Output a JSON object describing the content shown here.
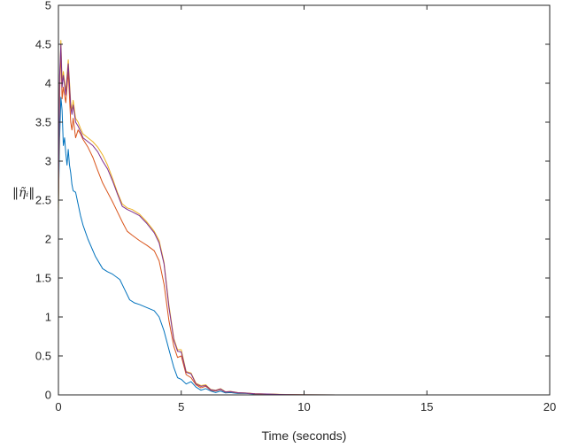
{
  "chart_data": {
    "type": "line",
    "title": "",
    "xlabel": "Time (seconds)",
    "ylabel": "‖η̃ᵢ‖",
    "xlim": [
      0,
      20
    ],
    "ylim": [
      0,
      5
    ],
    "xticks": [
      "0",
      "5",
      "10",
      "15",
      "20"
    ],
    "yticks": [
      "0",
      "0.5",
      "1",
      "1.5",
      "2",
      "2.5",
      "3",
      "3.5",
      "4",
      "4.5",
      "5"
    ],
    "grid": false,
    "legend": "none",
    "series": [
      {
        "color": "#0072BD",
        "x": [
          0,
          0.05,
          0.1,
          0.15,
          0.2,
          0.25,
          0.3,
          0.35,
          0.4,
          0.45,
          0.5,
          0.55,
          0.6,
          0.7,
          0.8,
          0.9,
          1.0,
          1.2,
          1.5,
          1.8,
          2.0,
          2.2,
          2.5,
          2.7,
          2.9,
          3.1,
          3.3,
          3.6,
          3.9,
          4.1,
          4.3,
          4.5,
          4.7,
          4.85,
          5.0,
          5.2,
          5.4,
          5.6,
          5.8,
          6.0,
          6.2,
          6.4,
          6.6,
          6.8,
          7.0,
          7.3,
          7.6,
          8.0,
          8.5,
          9.0,
          10,
          12,
          15,
          20
        ],
        "y": [
          2.45,
          3.3,
          3.82,
          3.65,
          3.2,
          3.3,
          3.1,
          2.95,
          3.15,
          2.95,
          2.85,
          2.7,
          2.62,
          2.6,
          2.45,
          2.3,
          2.18,
          2.0,
          1.78,
          1.62,
          1.58,
          1.55,
          1.48,
          1.35,
          1.22,
          1.18,
          1.16,
          1.12,
          1.08,
          1.0,
          0.82,
          0.58,
          0.35,
          0.22,
          0.2,
          0.14,
          0.17,
          0.1,
          0.06,
          0.08,
          0.05,
          0.03,
          0.05,
          0.025,
          0.03,
          0.018,
          0.02,
          0.01,
          0.008,
          0.004,
          0.002,
          0.0,
          0.0,
          0.0
        ]
      },
      {
        "color": "#D95319",
        "x": [
          0,
          0.05,
          0.1,
          0.15,
          0.2,
          0.3,
          0.4,
          0.5,
          0.55,
          0.6,
          0.7,
          0.8,
          0.9,
          1.0,
          1.2,
          1.4,
          1.6,
          1.8,
          2.0,
          2.2,
          2.4,
          2.6,
          2.8,
          3.0,
          3.3,
          3.6,
          3.9,
          4.1,
          4.3,
          4.5,
          4.7,
          4.85,
          5.0,
          5.2,
          5.4,
          5.6,
          5.8,
          6.0,
          6.2,
          6.4,
          6.6,
          6.8,
          7.0,
          7.3,
          7.6,
          8.0,
          8.5,
          9.0,
          10,
          12,
          15,
          20
        ],
        "y": [
          2.45,
          3.9,
          4.42,
          3.8,
          3.95,
          3.75,
          4.15,
          3.5,
          3.4,
          3.55,
          3.3,
          3.4,
          3.35,
          3.28,
          3.18,
          3.05,
          2.88,
          2.72,
          2.6,
          2.48,
          2.35,
          2.22,
          2.1,
          2.05,
          1.98,
          1.92,
          1.85,
          1.72,
          1.42,
          0.95,
          0.62,
          0.48,
          0.5,
          0.26,
          0.22,
          0.13,
          0.09,
          0.11,
          0.06,
          0.05,
          0.07,
          0.035,
          0.04,
          0.025,
          0.022,
          0.014,
          0.01,
          0.006,
          0.002,
          0.0,
          0.0,
          0.0
        ]
      },
      {
        "color": "#EDB120",
        "x": [
          0,
          0.05,
          0.1,
          0.15,
          0.2,
          0.3,
          0.4,
          0.5,
          0.55,
          0.6,
          0.7,
          0.8,
          0.9,
          1.0,
          1.2,
          1.4,
          1.6,
          1.8,
          2.0,
          2.2,
          2.4,
          2.6,
          2.8,
          3.0,
          3.3,
          3.6,
          3.9,
          4.1,
          4.3,
          4.5,
          4.7,
          4.85,
          5.0,
          5.2,
          5.4,
          5.6,
          5.8,
          6.0,
          6.2,
          6.4,
          6.6,
          6.8,
          7.0,
          7.3,
          7.6,
          8.0,
          8.5,
          9.0,
          10,
          12,
          15,
          20
        ],
        "y": [
          2.3,
          4.0,
          4.55,
          4.0,
          4.15,
          3.9,
          4.3,
          3.75,
          3.65,
          3.78,
          3.55,
          3.5,
          3.42,
          3.35,
          3.3,
          3.25,
          3.18,
          3.08,
          2.95,
          2.78,
          2.6,
          2.45,
          2.4,
          2.38,
          2.32,
          2.22,
          2.1,
          1.98,
          1.7,
          1.15,
          0.72,
          0.58,
          0.58,
          0.3,
          0.28,
          0.15,
          0.12,
          0.13,
          0.07,
          0.06,
          0.08,
          0.04,
          0.045,
          0.03,
          0.025,
          0.015,
          0.012,
          0.007,
          0.002,
          0.0,
          0.0,
          0.0
        ]
      },
      {
        "color": "#7E2F8E",
        "x": [
          0,
          0.05,
          0.1,
          0.15,
          0.2,
          0.3,
          0.4,
          0.5,
          0.55,
          0.6,
          0.7,
          0.8,
          0.9,
          1.0,
          1.2,
          1.4,
          1.6,
          1.8,
          2.0,
          2.2,
          2.4,
          2.6,
          2.8,
          3.0,
          3.3,
          3.6,
          3.9,
          4.1,
          4.3,
          4.5,
          4.7,
          4.85,
          5.0,
          5.2,
          5.4,
          5.6,
          5.8,
          6.0,
          6.2,
          6.4,
          6.6,
          6.8,
          7.0,
          7.3,
          7.6,
          8.0,
          8.5,
          9.0,
          10,
          12,
          15,
          20
        ],
        "y": [
          2.5,
          4.1,
          4.5,
          3.95,
          4.1,
          3.85,
          4.25,
          3.7,
          3.6,
          3.72,
          3.5,
          3.45,
          3.38,
          3.3,
          3.25,
          3.2,
          3.12,
          3.0,
          2.9,
          2.75,
          2.58,
          2.42,
          2.38,
          2.35,
          2.3,
          2.2,
          2.08,
          1.95,
          1.68,
          1.12,
          0.7,
          0.56,
          0.55,
          0.29,
          0.27,
          0.14,
          0.11,
          0.12,
          0.065,
          0.055,
          0.075,
          0.038,
          0.042,
          0.028,
          0.024,
          0.014,
          0.011,
          0.006,
          0.002,
          0.0,
          0.0,
          0.0
        ]
      }
    ]
  }
}
